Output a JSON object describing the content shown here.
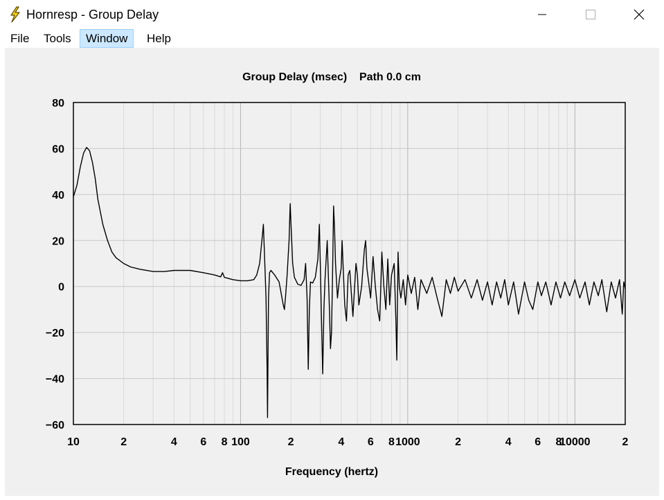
{
  "window": {
    "title": "Hornresp - Group Delay",
    "controls": {
      "minimize": "minimize",
      "maximize": "maximize",
      "close": "close"
    }
  },
  "menu": {
    "items": [
      {
        "id": "file",
        "label": "File"
      },
      {
        "id": "tools",
        "label": "Tools"
      },
      {
        "id": "window",
        "label": "Window",
        "highlighted": true
      },
      {
        "id": "help",
        "label": "Help"
      }
    ]
  },
  "chart_data": {
    "type": "line",
    "title": "Group Delay (msec)    Path 0.0 cm",
    "xlabel": "Frequency (hertz)",
    "ylabel": "",
    "x_scale": "log",
    "xlim": [
      10,
      20000
    ],
    "ylim": [
      -60,
      80
    ],
    "grid": true,
    "y_ticks": [
      80,
      60,
      40,
      20,
      0,
      -20,
      -40,
      -60
    ],
    "x_ticks": [
      {
        "value": 10,
        "label": "10"
      },
      {
        "value": 20,
        "label": "2"
      },
      {
        "value": 40,
        "label": "4"
      },
      {
        "value": 60,
        "label": "6"
      },
      {
        "value": 80,
        "label": "8"
      },
      {
        "value": 100,
        "label": "100"
      },
      {
        "value": 200,
        "label": "2"
      },
      {
        "value": 400,
        "label": "4"
      },
      {
        "value": 600,
        "label": "6"
      },
      {
        "value": 800,
        "label": "8"
      },
      {
        "value": 1000,
        "label": "1000"
      },
      {
        "value": 2000,
        "label": "2"
      },
      {
        "value": 4000,
        "label": "4"
      },
      {
        "value": 6000,
        "label": "6"
      },
      {
        "value": 8000,
        "label": "8"
      },
      {
        "value": 10000,
        "label": "10000"
      },
      {
        "value": 20000,
        "label": "2"
      }
    ],
    "series": [
      {
        "color": "#000000",
        "points": [
          [
            10,
            39
          ],
          [
            10.5,
            44
          ],
          [
            11,
            52
          ],
          [
            11.5,
            58
          ],
          [
            12,
            60.5
          ],
          [
            12.5,
            59
          ],
          [
            13,
            54
          ],
          [
            13.5,
            47
          ],
          [
            14,
            38
          ],
          [
            15,
            27
          ],
          [
            16,
            20
          ],
          [
            17,
            15
          ],
          [
            18,
            12.5
          ],
          [
            20,
            10
          ],
          [
            22,
            8.5
          ],
          [
            25,
            7.5
          ],
          [
            30,
            6.5
          ],
          [
            35,
            6.5
          ],
          [
            40,
            7
          ],
          [
            50,
            7
          ],
          [
            60,
            6
          ],
          [
            70,
            5
          ],
          [
            76,
            4.2
          ],
          [
            78,
            6
          ],
          [
            80,
            4
          ],
          [
            90,
            3
          ],
          [
            100,
            2.5
          ],
          [
            110,
            2.5
          ],
          [
            120,
            3
          ],
          [
            125,
            5
          ],
          [
            130,
            10
          ],
          [
            135,
            22
          ],
          [
            137,
            27
          ],
          [
            140,
            8
          ],
          [
            142,
            -5
          ],
          [
            144,
            -35
          ],
          [
            145,
            -57
          ],
          [
            146,
            -30
          ],
          [
            147,
            -5
          ],
          [
            149,
            6
          ],
          [
            152,
            7
          ],
          [
            160,
            5
          ],
          [
            170,
            2
          ],
          [
            175,
            -3
          ],
          [
            180,
            -8
          ],
          [
            183,
            -10
          ],
          [
            186,
            -4
          ],
          [
            190,
            5
          ],
          [
            195,
            20
          ],
          [
            198,
            36
          ],
          [
            201,
            25
          ],
          [
            205,
            10
          ],
          [
            210,
            4
          ],
          [
            220,
            1
          ],
          [
            230,
            0.5
          ],
          [
            240,
            3
          ],
          [
            245,
            10
          ],
          [
            250,
            -5
          ],
          [
            254,
            -36
          ],
          [
            258,
            -10
          ],
          [
            262,
            2
          ],
          [
            270,
            1.5
          ],
          [
            280,
            4
          ],
          [
            290,
            12
          ],
          [
            296,
            27
          ],
          [
            300,
            10
          ],
          [
            306,
            -20
          ],
          [
            310,
            -38
          ],
          [
            315,
            -10
          ],
          [
            320,
            3
          ],
          [
            330,
            20
          ],
          [
            335,
            5
          ],
          [
            340,
            -10
          ],
          [
            345,
            -27
          ],
          [
            350,
            -20
          ],
          [
            355,
            5
          ],
          [
            360,
            35
          ],
          [
            365,
            25
          ],
          [
            370,
            10
          ],
          [
            380,
            -5
          ],
          [
            390,
            3
          ],
          [
            400,
            8
          ],
          [
            405,
            20
          ],
          [
            410,
            10
          ],
          [
            420,
            -8
          ],
          [
            430,
            -15
          ],
          [
            440,
            5
          ],
          [
            450,
            7
          ],
          [
            470,
            -13
          ],
          [
            490,
            10
          ],
          [
            500,
            5
          ],
          [
            510,
            -8
          ],
          [
            530,
            0
          ],
          [
            550,
            16
          ],
          [
            560,
            20
          ],
          [
            570,
            8
          ],
          [
            600,
            -5
          ],
          [
            620,
            13
          ],
          [
            640,
            0
          ],
          [
            660,
            -10
          ],
          [
            680,
            -15
          ],
          [
            700,
            15
          ],
          [
            720,
            0
          ],
          [
            740,
            -10
          ],
          [
            760,
            12
          ],
          [
            780,
            -8
          ],
          [
            800,
            5
          ],
          [
            830,
            10
          ],
          [
            850,
            -15
          ],
          [
            860,
            -32
          ],
          [
            875,
            15
          ],
          [
            890,
            0
          ],
          [
            910,
            -5
          ],
          [
            940,
            3
          ],
          [
            970,
            -8
          ],
          [
            1000,
            5
          ],
          [
            1050,
            -3
          ],
          [
            1100,
            4
          ],
          [
            1150,
            -10
          ],
          [
            1200,
            3
          ],
          [
            1300,
            -3
          ],
          [
            1400,
            4
          ],
          [
            1500,
            -5
          ],
          [
            1600,
            -13
          ],
          [
            1700,
            3
          ],
          [
            1800,
            -3
          ],
          [
            1900,
            4
          ],
          [
            2000,
            -2
          ],
          [
            2200,
            3
          ],
          [
            2400,
            -5
          ],
          [
            2600,
            3
          ],
          [
            2800,
            -6
          ],
          [
            3000,
            2
          ],
          [
            3200,
            -8
          ],
          [
            3400,
            2
          ],
          [
            3600,
            -5
          ],
          [
            3800,
            3
          ],
          [
            4000,
            -8
          ],
          [
            4300,
            2
          ],
          [
            4600,
            -12
          ],
          [
            5000,
            2
          ],
          [
            5300,
            -6
          ],
          [
            5600,
            -10
          ],
          [
            6000,
            2
          ],
          [
            6300,
            -4
          ],
          [
            6700,
            2
          ],
          [
            7200,
            -8
          ],
          [
            7700,
            2
          ],
          [
            8200,
            -5
          ],
          [
            8700,
            2
          ],
          [
            9300,
            -4
          ],
          [
            10000,
            3
          ],
          [
            10700,
            -5
          ],
          [
            11500,
            2
          ],
          [
            12200,
            -8
          ],
          [
            13000,
            2
          ],
          [
            13800,
            -4
          ],
          [
            14500,
            3
          ],
          [
            15500,
            -11
          ],
          [
            16500,
            2
          ],
          [
            17500,
            -5
          ],
          [
            18500,
            3
          ],
          [
            19200,
            -12
          ],
          [
            19600,
            2
          ],
          [
            20000,
            -1
          ]
        ]
      }
    ]
  }
}
